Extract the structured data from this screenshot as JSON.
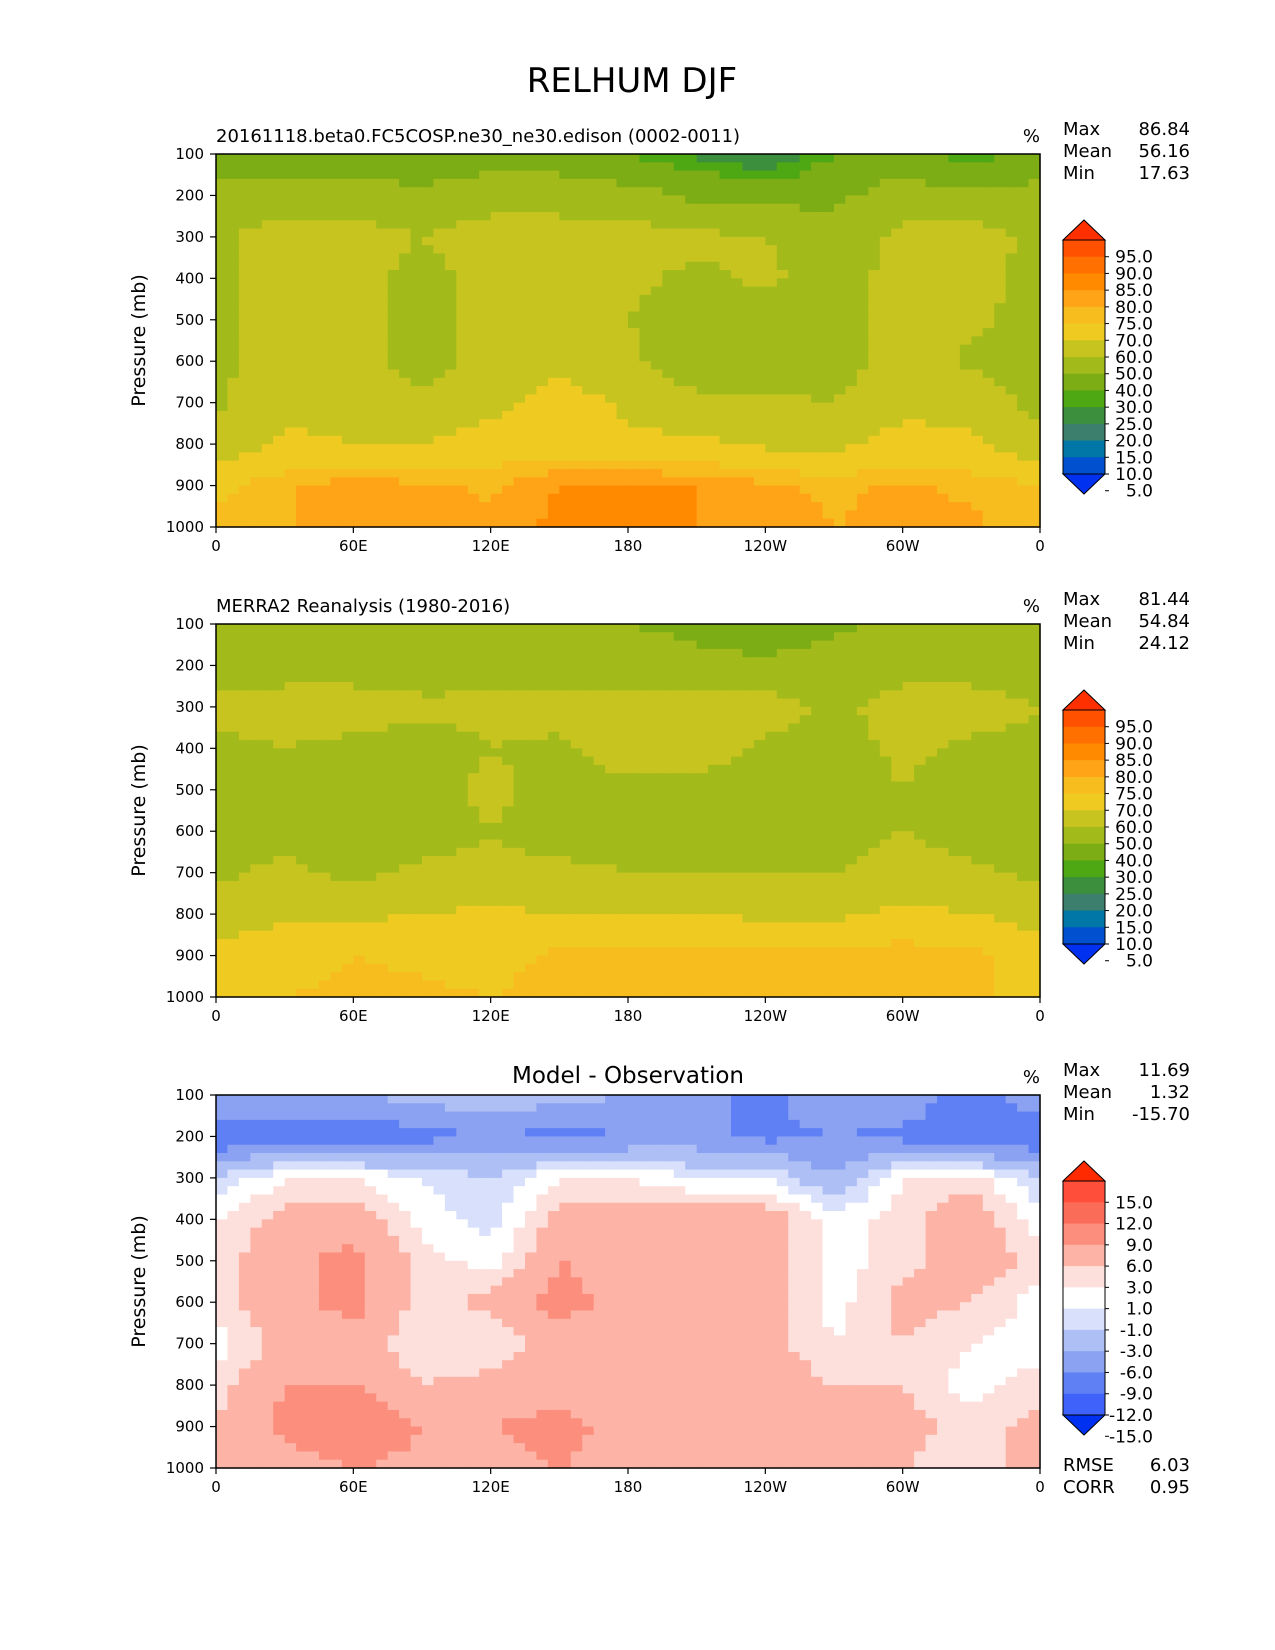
{
  "figure": {
    "title": "RELHUM DJF"
  },
  "axes": {
    "x_ticks": [
      "0",
      "60E",
      "120E",
      "180",
      "120W",
      "60W",
      "0"
    ],
    "y_ticks": [
      "100",
      "200",
      "300",
      "400",
      "500",
      "600",
      "700",
      "800",
      "900",
      "1000"
    ],
    "ylabel": "Pressure (mb)"
  },
  "colorbars": {
    "abs": {
      "labels": [
        "95.0",
        "90.0",
        "85.0",
        "80.0",
        "75.0",
        "70.0",
        "60.0",
        "50.0",
        "40.0",
        "30.0",
        "25.0",
        "20.0",
        "15.0",
        "10.0",
        "5.0"
      ],
      "colors": [
        "#ff3000",
        "#ff5100",
        "#ff7000",
        "#ff8a00",
        "#ffa317",
        "#f7bd1e",
        "#efcb22",
        "#c7c41f",
        "#a3bb1a",
        "#7cad14",
        "#4ea814",
        "#3c8f3c",
        "#3d7f6d",
        "#0077a6",
        "#0050d0",
        "#0030f0"
      ]
    },
    "diff": {
      "labels": [
        "15.0",
        "12.0",
        "9.0",
        "6.0",
        "3.0",
        "1.0",
        "-1.0",
        "-3.0",
        "-6.0",
        "-9.0",
        "-12.0",
        "-15.0"
      ],
      "colors": [
        "#ff2a00",
        "#ff4e3a",
        "#fb6c58",
        "#fb8e7c",
        "#fdb3a6",
        "#fde0dc",
        "#ffffff",
        "#d8e0fb",
        "#aebff6",
        "#8aa2f1",
        "#5f80f5",
        "#3f63fa",
        "#0030f0"
      ]
    }
  },
  "panels": [
    {
      "id": "model",
      "title_left": "20161118.beta0.FC5COSP.ne30_ne30.edison (0002-0011)",
      "title_center": "",
      "units": "%",
      "stats": [
        {
          "label": "Max",
          "value": "86.84"
        },
        {
          "label": "Mean",
          "value": "56.16"
        },
        {
          "label": "Min",
          "value": "17.63"
        }
      ],
      "extra": [],
      "colorbar": "abs"
    },
    {
      "id": "obs",
      "title_left": "MERRA2 Reanalysis (1980-2016)",
      "title_center": "",
      "units": "%",
      "stats": [
        {
          "label": "Max",
          "value": "81.44"
        },
        {
          "label": "Mean",
          "value": "54.84"
        },
        {
          "label": "Min",
          "value": "24.12"
        }
      ],
      "extra": [],
      "colorbar": "abs"
    },
    {
      "id": "diff",
      "title_left": "",
      "title_center": "Model - Observation",
      "units": "%",
      "stats": [
        {
          "label": "Max",
          "value": "11.69"
        },
        {
          "label": "Mean",
          "value": "1.32"
        },
        {
          "label": "Min",
          "value": "-15.70"
        }
      ],
      "extra": [
        {
          "label": "RMSE",
          "value": "6.03"
        },
        {
          "label": "CORR",
          "value": "0.95"
        }
      ],
      "colorbar": "diff"
    }
  ],
  "chart_data": [
    {
      "type": "heatmap",
      "title": "20161118.beta0.FC5COSP.ne30_ne30.edison (0002-0011)",
      "xlabel": "",
      "ylabel": "Pressure (mb)",
      "units": "%",
      "xlim": [
        0,
        360
      ],
      "ylim": [
        1000,
        100
      ],
      "x_ticks": [
        "0",
        "60E",
        "120E",
        "180",
        "120W",
        "60W",
        "0"
      ],
      "levels": [
        5,
        10,
        15,
        20,
        25,
        30,
        40,
        50,
        60,
        70,
        75,
        80,
        85,
        90,
        95
      ],
      "x": [
        0,
        30,
        60,
        90,
        120,
        150,
        180,
        210,
        240,
        270,
        300,
        330,
        360
      ],
      "y": [
        100,
        200,
        300,
        400,
        500,
        600,
        700,
        800,
        900,
        1000
      ],
      "z": [
        [
          38,
          32,
          35,
          33,
          36,
          35,
          30,
          24,
          18,
          30,
          36,
          24,
          38
        ],
        [
          42,
          45,
          45,
          42,
          45,
          45,
          44,
          38,
          36,
          38,
          44,
          42,
          42
        ],
        [
          48,
          55,
          54,
          50,
          55,
          55,
          54,
          52,
          50,
          44,
          53,
          54,
          48
        ],
        [
          48,
          55,
          55,
          46,
          55,
          55,
          52,
          48,
          52,
          45,
          54,
          54,
          46
        ],
        [
          48,
          55,
          55,
          44,
          55,
          55,
          50,
          44,
          45,
          45,
          54,
          52,
          46
        ],
        [
          48,
          54,
          55,
          44,
          55,
          56,
          52,
          44,
          44,
          45,
          55,
          48,
          46
        ],
        [
          48,
          58,
          56,
          54,
          56,
          65,
          58,
          52,
          52,
          50,
          58,
          56,
          47
        ],
        [
          52,
          62,
          60,
          60,
          65,
          65,
          62,
          62,
          58,
          58,
          63,
          62,
          52
        ],
        [
          68,
          74,
          78,
          76,
          74,
          80,
          81,
          80,
          76,
          74,
          76,
          74,
          70
        ],
        [
          72,
          74,
          78,
          78,
          76,
          82,
          82,
          80,
          78,
          75,
          76,
          76,
          72
        ]
      ],
      "stats": {
        "max": 86.84,
        "mean": 56.16,
        "min": 17.63
      }
    },
    {
      "type": "heatmap",
      "title": "MERRA2 Reanalysis (1980-2016)",
      "xlabel": "",
      "ylabel": "Pressure (mb)",
      "units": "%",
      "xlim": [
        0,
        360
      ],
      "ylim": [
        1000,
        100
      ],
      "x_ticks": [
        "0",
        "60E",
        "120E",
        "180",
        "120W",
        "60W",
        "0"
      ],
      "levels": [
        5,
        10,
        15,
        20,
        25,
        30,
        40,
        50,
        60,
        70,
        75,
        80,
        85,
        90,
        95
      ],
      "x": [
        0,
        30,
        60,
        90,
        120,
        150,
        180,
        210,
        240,
        270,
        300,
        330,
        360
      ],
      "y": [
        100,
        200,
        300,
        400,
        500,
        600,
        700,
        800,
        900,
        1000
      ],
      "z": [
        [
          40,
          42,
          42,
          42,
          42,
          42,
          40,
          38,
          34,
          38,
          42,
          42,
          40
        ],
        [
          45,
          46,
          46,
          45,
          46,
          46,
          45,
          42,
          42,
          44,
          46,
          46,
          45
        ],
        [
          52,
          54,
          54,
          52,
          52,
          54,
          54,
          56,
          54,
          48,
          54,
          54,
          50
        ],
        [
          48,
          50,
          48,
          46,
          50,
          48,
          56,
          56,
          48,
          46,
          52,
          48,
          48
        ],
        [
          46,
          46,
          45,
          46,
          52,
          46,
          46,
          46,
          42,
          45,
          50,
          45,
          46
        ],
        [
          46,
          48,
          45,
          46,
          50,
          46,
          46,
          46,
          44,
          46,
          50,
          46,
          46
        ],
        [
          48,
          52,
          48,
          52,
          52,
          52,
          50,
          50,
          50,
          50,
          54,
          52,
          48
        ],
        [
          56,
          58,
          58,
          60,
          62,
          60,
          60,
          60,
          58,
          58,
          62,
          60,
          56
        ],
        [
          62,
          66,
          70,
          68,
          66,
          72,
          74,
          74,
          72,
          72,
          74,
          72,
          64
        ],
        [
          66,
          70,
          72,
          72,
          70,
          74,
          75,
          74,
          73,
          72,
          74,
          72,
          66
        ]
      ],
      "stats": {
        "max": 81.44,
        "mean": 54.84,
        "min": 24.12
      }
    },
    {
      "type": "heatmap",
      "title": "Model - Observation",
      "xlabel": "",
      "ylabel": "Pressure (mb)",
      "units": "%",
      "xlim": [
        0,
        360
      ],
      "ylim": [
        1000,
        100
      ],
      "x_ticks": [
        "0",
        "60E",
        "120E",
        "180",
        "120W",
        "60W",
        "0"
      ],
      "levels": [
        -15,
        -12,
        -9,
        -6,
        -3,
        -1,
        1,
        3,
        6,
        9,
        12,
        15
      ],
      "x": [
        0,
        30,
        60,
        90,
        120,
        150,
        180,
        210,
        240,
        270,
        300,
        330,
        360
      ],
      "y": [
        100,
        200,
        300,
        400,
        500,
        600,
        700,
        800,
        900,
        1000
      ],
      "z": [
        [
          -6,
          -8,
          -6,
          -5,
          -3,
          -5,
          -6,
          -8,
          -10,
          -6,
          -6,
          -12,
          -6
        ],
        [
          -12,
          -10,
          -12,
          -10,
          -9,
          -10,
          -9,
          -8,
          -10,
          -9,
          -10,
          -12,
          -12
        ],
        [
          -3,
          1,
          1,
          -1,
          -3,
          1,
          1,
          -1,
          -1,
          -6,
          1,
          2,
          -3
        ],
        [
          1,
          4,
          5,
          0,
          -2,
          4,
          5,
          5,
          5,
          0,
          2,
          5,
          0
        ],
        [
          2,
          5,
          7,
          2,
          0,
          6,
          5,
          5,
          5,
          0,
          2,
          5,
          2
        ],
        [
          2,
          5,
          7,
          2,
          4,
          7,
          5,
          5,
          5,
          0,
          4,
          3,
          0
        ],
        [
          0,
          4,
          5,
          1,
          1,
          5,
          4,
          3,
          4,
          1,
          3,
          1,
          0
        ],
        [
          2,
          6,
          6,
          3,
          4,
          5,
          3,
          4,
          5,
          3,
          3,
          0,
          2
        ],
        [
          3,
          7,
          9,
          6,
          6,
          7,
          5,
          5,
          6,
          3,
          4,
          2,
          4
        ],
        [
          4,
          4,
          6,
          5,
          5,
          6,
          5,
          5,
          5,
          3,
          3,
          2,
          4
        ]
      ],
      "stats": {
        "max": 11.69,
        "mean": 1.32,
        "min": -15.7,
        "rmse": 6.03,
        "corr": 0.95
      }
    }
  ]
}
